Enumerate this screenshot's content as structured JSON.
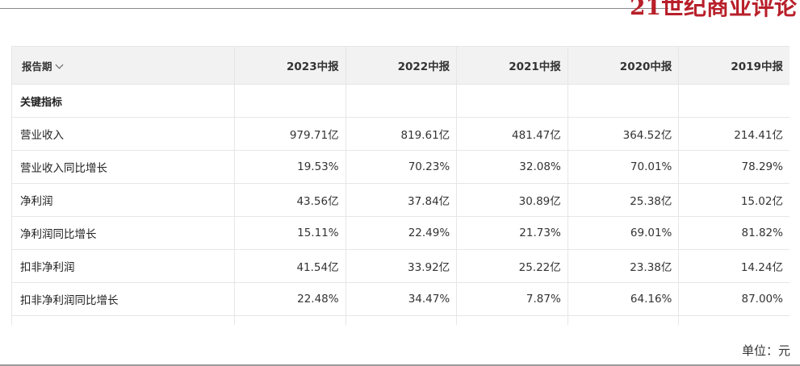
{
  "brand": "21世纪商业评论",
  "table": {
    "period_label": "报告期",
    "periods": [
      "2023中报",
      "2022中报",
      "2021中报",
      "2020中报",
      "2019中报"
    ],
    "section_label": "关键指标",
    "rows": [
      {
        "label": "营业收入",
        "values": [
          "979.71亿",
          "819.61亿",
          "481.47亿",
          "364.52亿",
          "214.41亿"
        ]
      },
      {
        "label": "营业收入同比增长",
        "values": [
          "19.53%",
          "70.23%",
          "32.08%",
          "70.01%",
          "78.29%"
        ]
      },
      {
        "label": "净利润",
        "values": [
          "43.56亿",
          "37.84亿",
          "30.89亿",
          "25.38亿",
          "15.02亿"
        ]
      },
      {
        "label": "净利润同比增长",
        "values": [
          "15.11%",
          "22.49%",
          "21.73%",
          "69.01%",
          "81.82%"
        ]
      },
      {
        "label": "扣非净利润",
        "values": [
          "41.54亿",
          "33.92亿",
          "25.22亿",
          "23.38亿",
          "14.24亿"
        ]
      },
      {
        "label": "扣非净利润同比增长",
        "values": [
          "22.48%",
          "34.47%",
          "7.87%",
          "64.16%",
          "87.00%"
        ]
      }
    ]
  },
  "unit_note": "单位：元"
}
